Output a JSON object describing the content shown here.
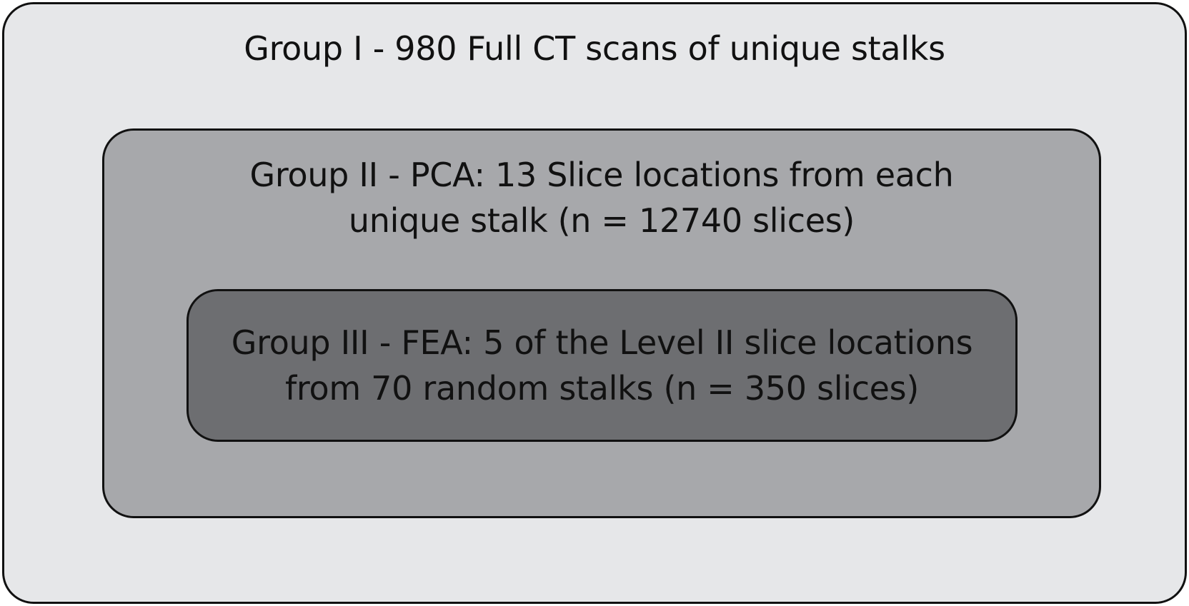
{
  "groups": [
    {
      "lines": [
        "Group I - 980 Full CT scans of unique stalks"
      ],
      "fill": "#e6e7e9"
    },
    {
      "lines": [
        "Group II - PCA: 13 Slice locations from each",
        "unique stalk (n = 12740 slices)"
      ],
      "fill": "#a7a8ab"
    },
    {
      "lines": [
        "Group III - FEA: 5 of the Level II slice locations",
        "from 70 random stalks (n = 350 slices)"
      ],
      "fill": "#6d6e71"
    }
  ],
  "colors": {
    "border": "#111111",
    "text": "#111111"
  }
}
